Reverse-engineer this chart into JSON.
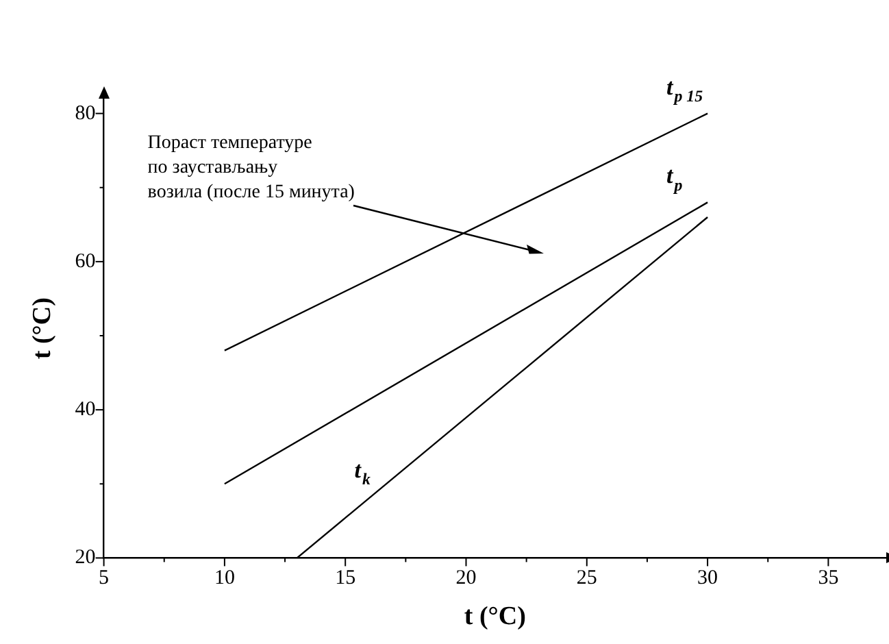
{
  "chart_data": {
    "type": "line",
    "xlabel": "t (°C)",
    "ylabel": "t (°C)",
    "xlim": [
      5,
      37.4
    ],
    "xticks": [
      5,
      10,
      15,
      20,
      25,
      30,
      35
    ],
    "ylim": [
      20,
      82
    ],
    "yticks": [
      20,
      40,
      60,
      80
    ],
    "grid": false,
    "legend": false,
    "marker": "none",
    "line_style": "solid",
    "series": [
      {
        "name": "t$_{p 15}$",
        "color": "#000000",
        "x": [
          10,
          30
        ],
        "values": [
          48,
          80
        ]
      },
      {
        "name": "t$_{p}$",
        "color": "#000000",
        "x": [
          10,
          30
        ],
        "values": [
          30,
          68
        ]
      },
      {
        "name": "t$_{k}$",
        "color": "#000000",
        "x": [
          13,
          30
        ],
        "values": [
          20,
          66
        ]
      }
    ],
    "annotations": [
      "Пораст температуре\nпо заустављању\nвозила (после 15 минута)"
    ]
  }
}
